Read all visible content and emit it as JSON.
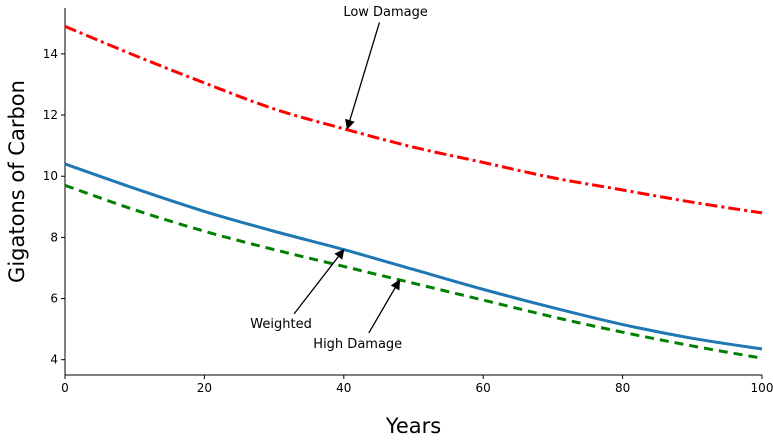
{
  "chart_data": {
    "type": "line",
    "title": "",
    "xlabel": "Years",
    "ylabel": "Gigatons of Carbon",
    "xlim": [
      0,
      100
    ],
    "ylim": [
      3.5,
      15.5
    ],
    "x_ticks": [
      0,
      20,
      40,
      60,
      80,
      100
    ],
    "y_ticks": [
      4,
      6,
      8,
      10,
      12,
      14
    ],
    "grid": false,
    "x": [
      0,
      10,
      20,
      30,
      40,
      50,
      60,
      70,
      80,
      90,
      100
    ],
    "series": [
      {
        "name": "Low Damage",
        "color": "#ff0000",
        "style": "dashdot",
        "values": [
          14.9,
          13.95,
          13.05,
          12.2,
          11.55,
          10.95,
          10.45,
          9.95,
          9.55,
          9.15,
          8.8
        ]
      },
      {
        "name": "Weighted",
        "color": "#1f77b4",
        "style": "solid",
        "values": [
          10.4,
          9.6,
          8.85,
          8.2,
          7.6,
          6.95,
          6.3,
          5.7,
          5.15,
          4.7,
          4.35
        ]
      },
      {
        "name": "High Damage",
        "color": "#008000",
        "style": "dashed",
        "values": [
          9.7,
          8.9,
          8.2,
          7.6,
          7.05,
          6.5,
          5.95,
          5.4,
          4.9,
          4.45,
          4.05
        ]
      }
    ],
    "annotations": [
      {
        "text": "Low Damage",
        "label_x": 46,
        "label_y": 15.4,
        "target_x": 40.5,
        "target_y": 11.55
      },
      {
        "text": "Weighted",
        "label_x": 31,
        "label_y": 5.2,
        "target_x": 40,
        "target_y": 7.6
      },
      {
        "text": "High Damage",
        "label_x": 42,
        "label_y": 4.55,
        "target_x": 48,
        "target_y": 6.6
      }
    ]
  }
}
